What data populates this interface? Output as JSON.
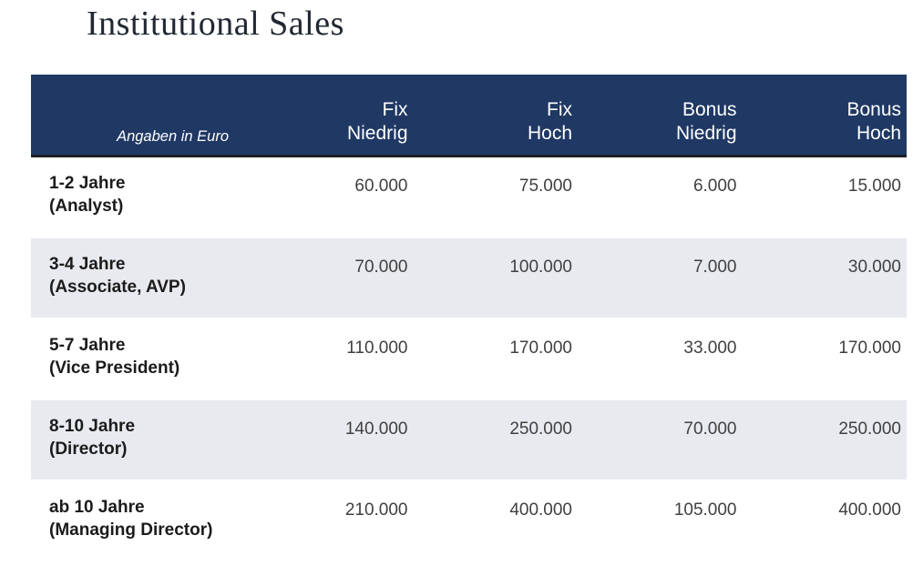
{
  "page": {
    "title": "Institutional Sales"
  },
  "table": {
    "unit_label": "Angaben in Euro",
    "columns": [
      {
        "line1": "Fix",
        "line2": "Niedrig"
      },
      {
        "line1": "Fix",
        "line2": "Hoch"
      },
      {
        "line1": "Bonus",
        "line2": "Niedrig"
      },
      {
        "line1": "Bonus",
        "line2": "Hoch"
      }
    ],
    "rows": [
      {
        "years": "1-2 Jahre",
        "role": "(Analyst)",
        "values": [
          "60.000",
          "75.000",
          "6.000",
          "15.000"
        ]
      },
      {
        "years": "3-4 Jahre",
        "role": "(Associate, AVP)",
        "values": [
          "70.000",
          "100.000",
          "7.000",
          "30.000"
        ]
      },
      {
        "years": "5-7 Jahre",
        "role": "(Vice President)",
        "values": [
          "110.000",
          "170.000",
          "33.000",
          "170.000"
        ]
      },
      {
        "years": "8-10 Jahre",
        "role": "(Director)",
        "values": [
          "140.000",
          "250.000",
          "70.000",
          "250.000"
        ]
      },
      {
        "years": "ab 10 Jahre",
        "role": "(Managing Director)",
        "values": [
          "210.000",
          "400.000",
          "105.000",
          "400.000"
        ]
      }
    ]
  },
  "colors": {
    "header_bg": "#1F3864",
    "header_underline": "#1C1E24",
    "header_text": "#FFFFFF",
    "row_shaded_bg": "#E9EAEF",
    "row_white_bg": "#FFFFFF",
    "title_text": "#212833",
    "label_text": "#1B1B1B",
    "number_text": "#404040"
  },
  "chart_data": {
    "type": "table",
    "title": "Institutional Sales",
    "unit": "Angaben in Euro",
    "columns": [
      "Fix Niedrig",
      "Fix Hoch",
      "Bonus Niedrig",
      "Bonus Hoch"
    ],
    "rows": [
      {
        "label": "1-2 Jahre (Analyst)",
        "fix_niedrig": 60000,
        "fix_hoch": 75000,
        "bonus_niedrig": 6000,
        "bonus_hoch": 15000
      },
      {
        "label": "3-4 Jahre (Associate, AVP)",
        "fix_niedrig": 70000,
        "fix_hoch": 100000,
        "bonus_niedrig": 7000,
        "bonus_hoch": 30000
      },
      {
        "label": "5-7 Jahre (Vice President)",
        "fix_niedrig": 110000,
        "fix_hoch": 170000,
        "bonus_niedrig": 33000,
        "bonus_hoch": 170000
      },
      {
        "label": "8-10 Jahre (Director)",
        "fix_niedrig": 140000,
        "fix_hoch": 250000,
        "bonus_niedrig": 70000,
        "bonus_hoch": 250000
      },
      {
        "label": "ab 10 Jahre (Managing Director)",
        "fix_niedrig": 210000,
        "fix_hoch": 400000,
        "bonus_niedrig": 105000,
        "bonus_hoch": 400000
      }
    ]
  }
}
